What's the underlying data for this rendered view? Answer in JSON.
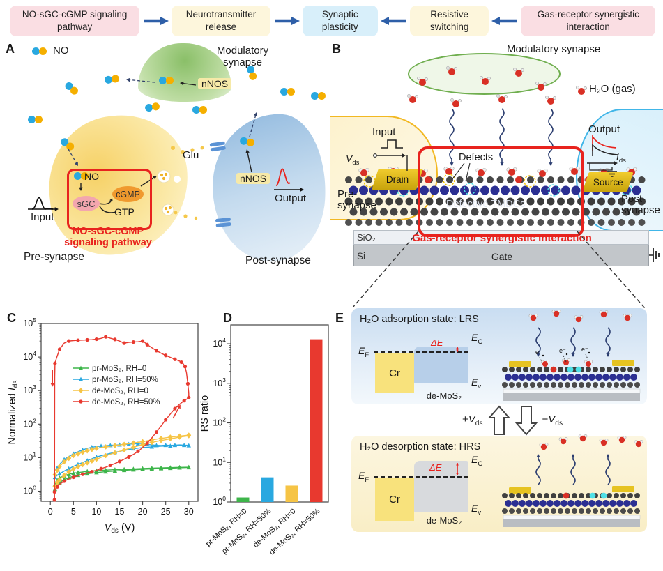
{
  "flow": {
    "steps": [
      {
        "label": "NO-sGC-cGMP signaling pathway",
        "bg": "#fadee3"
      },
      {
        "label": "Neurotransmitter release",
        "bg": "#fdf6dc"
      },
      {
        "label": "Synaptic plasticity",
        "bg": "#d8effa"
      },
      {
        "label": "Resistive switching",
        "bg": "#fdf6dc"
      },
      {
        "label": "Gas-receptor synergistic interaction",
        "bg": "#fadee3"
      }
    ]
  },
  "panelA": {
    "label": "A",
    "no_legend": "NO",
    "modulatory": "Modulatory synapse",
    "nnos": "nNOS",
    "glu": "Glu",
    "no_box": "NO",
    "sgc": "sGC",
    "cgmp": "cGMP",
    "gtp": "GTP",
    "pathway1": "NO-sGC-cGMP",
    "pathway2": "signaling pathway",
    "input": "Input",
    "output": "Output",
    "pre": "Pre-synapse",
    "post": "Post-synapse"
  },
  "panelB": {
    "label": "B",
    "modulatory": "Modulatory synapse",
    "h2o": "H₂O (gas)",
    "input": "Input",
    "output": "Output",
    "vds": {
      "main": "V",
      "sub": "ds"
    },
    "ids": {
      "main": "I",
      "sub": "ds"
    },
    "defects": "Defects",
    "tmdcs": "Defective TMDCs",
    "drain": "Drain",
    "source": "Source",
    "pre": "Pre-synapse",
    "post": "Post-synapse",
    "sio2": "SiO₂",
    "si": "Si",
    "gate": "Gate",
    "interaction": "Gas-receptor synergistic interaction"
  },
  "panelC": {
    "label": "C"
  },
  "panelD": {
    "label": "D"
  },
  "panelE": {
    "label": "E",
    "lrs_title": "H₂O adsorption state: LRS",
    "hrs_title": "H₂O desorption state: HRS",
    "ef": {
      "main": "E",
      "sub": "F"
    },
    "ec": {
      "main": "E",
      "sub": "C"
    },
    "ev": {
      "main": "E",
      "sub": "v"
    },
    "cr": "Cr",
    "demos2": "de-MoS₂",
    "delta_e": "ΔE",
    "plus": {
      "sign": "+",
      "main": "V",
      "sub": "ds"
    },
    "minus": {
      "sign": "−",
      "main": "V",
      "sub": "ds"
    },
    "electron": "e⁻"
  },
  "chart_data": [
    {
      "type": "line",
      "title": "",
      "xlabel_parts": [
        {
          "t": "V",
          "italic": true
        },
        {
          "t": "ds",
          "sub": true
        },
        {
          "t": " (V)"
        }
      ],
      "ylabel_parts": [
        {
          "t": "Normalized "
        },
        {
          "t": "I",
          "italic": true
        },
        {
          "t": "ds",
          "sub": true
        }
      ],
      "xlim": [
        -2,
        32
      ],
      "ylim": [
        0.5,
        100000
      ],
      "ylog": true,
      "grid": false,
      "xticks": [
        0,
        5,
        10,
        15,
        20,
        25,
        30
      ],
      "ytick_exponents": [
        0,
        1,
        2,
        3,
        4,
        5
      ],
      "legend_position": "inside-left",
      "annotation_color": "#e8392f",
      "annotations": [
        {
          "x1": 0.45,
          "y1": 4200,
          "x2": 0.45,
          "y2": 1300
        },
        {
          "x1": 26.6,
          "y1": 150,
          "x2": 28.2,
          "y2": 380
        }
      ],
      "series": [
        {
          "name": "pr-MoS₂, RH=0",
          "color": "#3db54a",
          "marker": "triangle",
          "marker_every": 1,
          "x": [
            1,
            1.5,
            2,
            3,
            4,
            5,
            6,
            8,
            10,
            12,
            14,
            16,
            18,
            20,
            22,
            24,
            26,
            28,
            30,
            30,
            28,
            26,
            24,
            22,
            20,
            18,
            16,
            14,
            12,
            10,
            8,
            6,
            5,
            4,
            3,
            2,
            1.5,
            1
          ],
          "y": [
            1.15,
            1.5,
            1.8,
            2.25,
            2.55,
            2.8,
            3.0,
            3.3,
            3.6,
            3.8,
            4.0,
            4.2,
            4.35,
            4.5,
            4.6,
            4.75,
            4.85,
            5.0,
            5.1,
            5.2,
            5.15,
            5.05,
            4.95,
            4.85,
            4.75,
            4.6,
            4.5,
            4.4,
            4.25,
            4.1,
            3.9,
            3.6,
            3.45,
            3.2,
            2.9,
            2.5,
            2.1,
            1.6
          ]
        },
        {
          "name": "pr-MoS₂, RH=50%",
          "color": "#29a8e0",
          "marker": "triangle",
          "marker_every": 2,
          "x": [
            1,
            1.5,
            2,
            3,
            4,
            5,
            6,
            7,
            8,
            9,
            10,
            12,
            14,
            16,
            18,
            20,
            22,
            24,
            26,
            28,
            30,
            30,
            29,
            28,
            27,
            26,
            25,
            24,
            23,
            22,
            21,
            20,
            19,
            18,
            17,
            16,
            15,
            14,
            13,
            12,
            11,
            10,
            9,
            8,
            7,
            6,
            5,
            4,
            3,
            2,
            1.5,
            1
          ],
          "y": [
            2.6,
            3.0,
            3.3,
            4.0,
            4.7,
            5.5,
            6.3,
            7.2,
            8.2,
            9.3,
            10.5,
            12.5,
            14.5,
            16.5,
            18.5,
            20,
            21,
            22,
            22.5,
            23,
            23,
            23.3,
            23.6,
            24,
            23.6,
            23.2,
            23.6,
            23,
            23.3,
            24,
            24.8,
            26.8,
            26.3,
            25.8,
            25.3,
            24.8,
            24.3,
            23.8,
            23.3,
            22.8,
            22.2,
            21.5,
            20.5,
            19,
            17,
            15,
            13,
            10.8,
            8.8,
            6.3,
            5,
            4
          ]
        },
        {
          "name": "de-MoS₂, RH=0",
          "color": "#f6c445",
          "marker": "diamond",
          "marker_every": 1,
          "x": [
            1,
            1.5,
            2,
            3,
            4,
            5,
            6,
            7,
            8,
            9,
            10,
            12,
            14,
            16,
            18,
            20,
            22,
            24,
            26,
            28,
            30,
            30,
            28,
            26,
            24,
            22,
            20,
            18,
            16,
            14,
            12,
            10,
            9,
            8,
            7,
            6,
            5,
            4,
            3,
            2,
            1.5,
            1
          ],
          "y": [
            1.4,
            1.8,
            2.2,
            3.0,
            3.8,
            4.6,
            5.4,
            6.2,
            7.0,
            8.0,
            9.0,
            11.5,
            14,
            17,
            20.5,
            24.5,
            28.5,
            32.5,
            36.5,
            41,
            45,
            47,
            44,
            41,
            37.5,
            34,
            30,
            27.5,
            25,
            23,
            21,
            19,
            17.5,
            16,
            14.5,
            13,
            11.5,
            9.5,
            7.5,
            5.5,
            4.2,
            3.1
          ]
        },
        {
          "name": "de-MoS₂, RH=50%",
          "color": "#e8392f",
          "marker": "circle",
          "marker_every": 2,
          "x": [
            0.9,
            1,
            1.5,
            2,
            3,
            4,
            5,
            6,
            7,
            8,
            9,
            10,
            11,
            12,
            13,
            14,
            15,
            16,
            17,
            18,
            19,
            20,
            21,
            22,
            23,
            24,
            25,
            26,
            27,
            28,
            29,
            29.6,
            30,
            30,
            29.8,
            29.5,
            29.2,
            28.8,
            28.4,
            28,
            27,
            26,
            25,
            24,
            23,
            22,
            21,
            20.5,
            20,
            19,
            18,
            17,
            16,
            15,
            14,
            13,
            12,
            11,
            10,
            9,
            8,
            7,
            6,
            5,
            4,
            3,
            2,
            1.3,
            1,
            0.95,
            0.9
          ],
          "y": [
            0.95,
            1.1,
            1.35,
            1.6,
            2.0,
            2.3,
            2.6,
            2.9,
            3.2,
            3.5,
            3.8,
            4.2,
            4.7,
            5.2,
            5.9,
            6.7,
            7.7,
            9.0,
            10.5,
            12.5,
            15.5,
            20,
            27,
            39,
            58,
            88,
            135,
            200,
            290,
            390,
            500,
            560,
            620,
            850,
            1600,
            3400,
            5200,
            6300,
            7000,
            7600,
            8600,
            9800,
            11200,
            13000,
            15500,
            19000,
            23500,
            27000,
            30000,
            28500,
            28000,
            27500,
            26000,
            30000,
            33500,
            36500,
            40000,
            36000,
            34000,
            33000,
            32500,
            32000,
            31500,
            31000,
            30000,
            26000,
            17000,
            9000,
            6500,
            2500,
            0.55
          ]
        }
      ]
    },
    {
      "type": "bar",
      "title": "",
      "ylabel": "RS ratio",
      "ylim": [
        1,
        30000
      ],
      "ylog": true,
      "ytick_exponents": [
        0,
        1,
        2,
        3,
        4
      ],
      "categories": [
        "pr-MoS₂, RH=0",
        "pr-MoS₂, RH=50%",
        "de-MoS₂, RH=0",
        "de-MoS₂, RH=50%"
      ],
      "values": [
        1.3,
        4.2,
        2.6,
        13000
      ],
      "colors": [
        "#3db54a",
        "#29a8e0",
        "#f6c445",
        "#e8392f"
      ]
    }
  ],
  "colors": {
    "accent_red": "#e8231e",
    "flow_arrow_blue": "#2e5fa8",
    "no_blue": "#29a8e0",
    "no_yellow": "#f5af00",
    "gold": "#e6c321",
    "lattice_dark": "#3f3f3f",
    "lattice_blue": "#2b2f92",
    "water_red": "#d93025",
    "cyan": "#4fe0e6",
    "receptor_blue": "#5b93d5"
  }
}
